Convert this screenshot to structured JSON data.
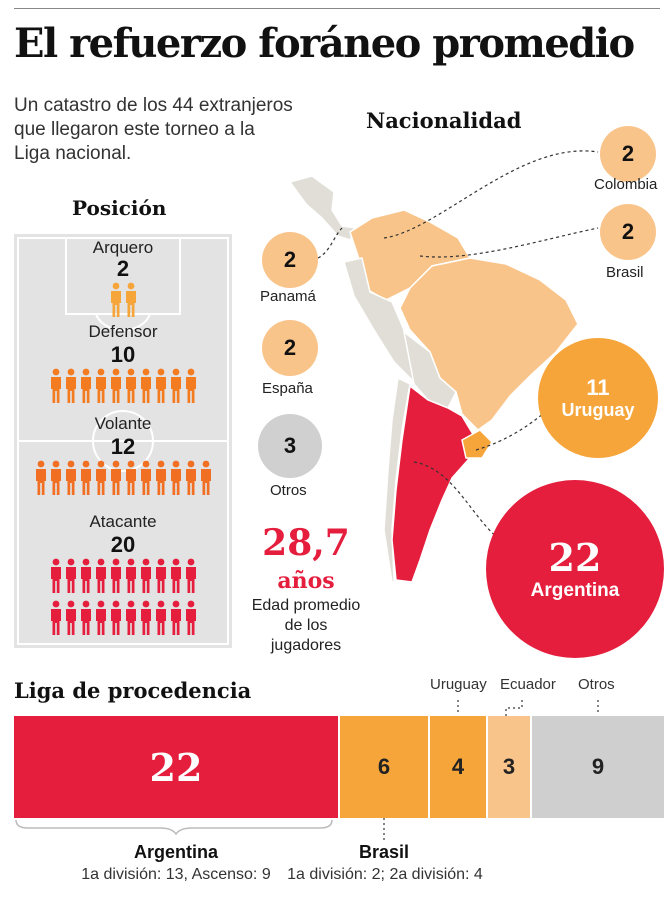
{
  "title": "El refuerzo foráneo promedio",
  "subtitle_lines": [
    "Un catastro de los 44 extranjeros",
    "que llegaron este torneo a la",
    "Liga nacional."
  ],
  "sections": {
    "posicion": "Posición",
    "nacionalidad": "Nacionalidad",
    "liga": "Liga de procedencia"
  },
  "colors": {
    "red": "#e41e3c",
    "orange": "#f47c20",
    "amber": "#f6a53b",
    "light_orange": "#f9c48a",
    "gray": "#cfcfcf",
    "field_gray": "#e3e3e3"
  },
  "positions": [
    {
      "label": "Arquero",
      "count": "2",
      "color": "#f6a53b"
    },
    {
      "label": "Defensor",
      "count": "10",
      "color": "#f47c20"
    },
    {
      "label": "Volante",
      "count": "12",
      "color": "#f06f22"
    },
    {
      "label": "Atacante",
      "count": "20",
      "color": "#e41e3c"
    }
  ],
  "nationality": [
    {
      "name": "Colombia",
      "value": "2",
      "color": "#f9c48a"
    },
    {
      "name": "Brasil",
      "value": "2",
      "color": "#f9c48a"
    },
    {
      "name": "Panamá",
      "value": "2",
      "color": "#f9c48a"
    },
    {
      "name": "España",
      "value": "2",
      "color": "#f9c48a"
    },
    {
      "name": "Otros",
      "value": "3",
      "color": "#d0d0d0"
    },
    {
      "name": "Uruguay",
      "value": "11",
      "color": "#f6a53b"
    },
    {
      "name": "Argentina",
      "value": "22",
      "color": "#e41e3c"
    }
  ],
  "age": {
    "value": "28,7",
    "unit": "años",
    "desc_lines": [
      "Edad promedio",
      "de los",
      "jugadores"
    ]
  },
  "league": {
    "segments": [
      {
        "name": "Argentina",
        "value": "22",
        "color": "#e41e3c"
      },
      {
        "name": "Brasil",
        "value": "6",
        "color": "#f6a53b"
      },
      {
        "name": "Uruguay",
        "value": "4",
        "color": "#f6a53b"
      },
      {
        "name": "Ecuador",
        "value": "3",
        "color": "#f9c48a"
      },
      {
        "name": "Otros",
        "value": "9",
        "color": "#cfcfcf"
      }
    ],
    "argentina_note": "1a división: 13, Ascenso: 9",
    "brasil_note": "1a división: 2; 2a división: 4"
  }
}
